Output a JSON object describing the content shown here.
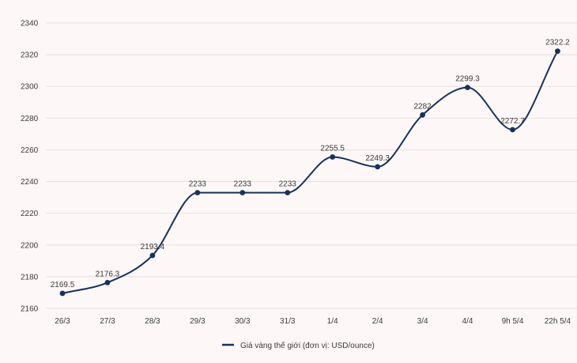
{
  "chart_data": {
    "type": "line",
    "categories": [
      "26/3",
      "27/3",
      "28/3",
      "29/3",
      "30/3",
      "31/3",
      "1/4",
      "2/4",
      "3/4",
      "4/4",
      "9h 5/4",
      "22h 5/4"
    ],
    "series": [
      {
        "name": "Giá vàng thế giới (đơn vị: USD/ounce)",
        "values": [
          2169.5,
          2176.3,
          2193.4,
          2233,
          2233,
          2233,
          2255.5,
          2249.3,
          2282,
          2299.3,
          2272.7,
          2322.2
        ],
        "labels": [
          "2169.5",
          "2176.3",
          "2193.4",
          "2233",
          "2233",
          "2233",
          "2255.5",
          "2249.3",
          "2282",
          "2299.3",
          "2272.7",
          "2322.2"
        ]
      }
    ],
    "title": "",
    "xlabel": "",
    "ylabel": "",
    "ylim": [
      2160,
      2340
    ],
    "yticks": [
      "2160",
      "2180",
      "2200",
      "2220",
      "2240",
      "2260",
      "2280",
      "2300",
      "2320",
      "2340"
    ],
    "grid": true,
    "legend_position": "bottom-center",
    "colors": {
      "line": "#17325e",
      "grid": "#e6e0df",
      "background": "#fdf8f7"
    }
  }
}
